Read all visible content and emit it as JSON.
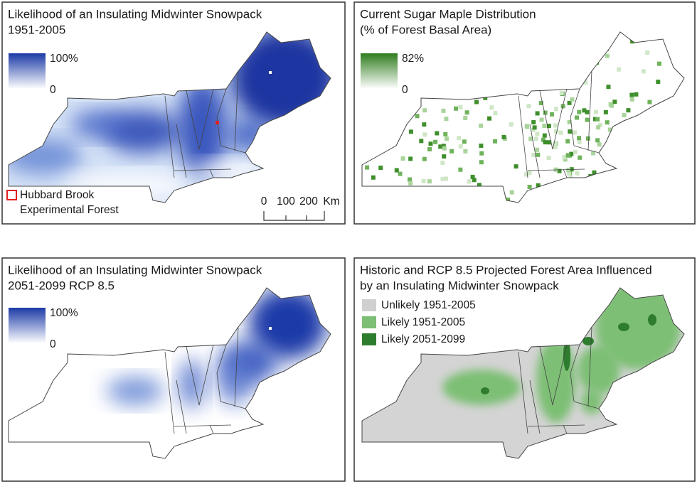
{
  "panels": [
    {
      "title_lines": [
        "Likelihood of an Insulating Midwinter Snowpack",
        "1951-2005"
      ],
      "legend": {
        "max": "100%",
        "min": "0"
      },
      "marker_legend": [
        "Hubbard Brook",
        "Experimental Forest"
      ],
      "scale_bar": [
        "0",
        "100",
        "200",
        "Km"
      ]
    },
    {
      "title_lines": [
        "Current Sugar Maple Distribution",
        "(% of Forest Basal Area)"
      ],
      "legend": {
        "max": "82%",
        "min": "0"
      }
    },
    {
      "title_lines": [
        "Likelihood of an Insulating Midwinter Snowpack",
        "2051-2099 RCP 8.5"
      ],
      "legend": {
        "max": "100%",
        "min": "0"
      }
    },
    {
      "title_lines": [
        "Historic and RCP 8.5 Projected Forest Area Influenced",
        "by an Insulating Midwinter Snowpack"
      ],
      "legend_items": [
        "Unlikely 1951-2005",
        "Likely 1951-2005",
        "Likely 2051-2099"
      ]
    }
  ]
}
